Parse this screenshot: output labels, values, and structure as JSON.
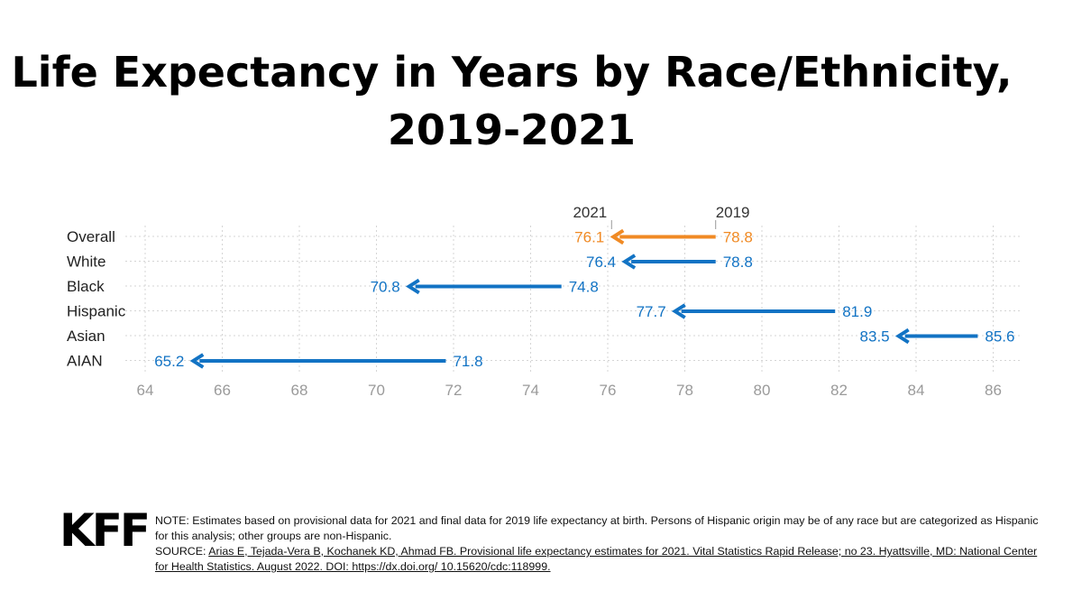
{
  "title_lines": [
    "Life Expectancy in Years by Race/Ethnicity,",
    "2019-2021"
  ],
  "colors": {
    "overall": "#f08a24",
    "group": "#1273c4",
    "grid": "#d5d5d5",
    "tick": "#9a9a9a",
    "label": "#222222"
  },
  "chart_data": {
    "type": "dumbbell-arrow",
    "title": "Life Expectancy in Years by Race/Ethnicity, 2019-2021",
    "start_label": "2019",
    "end_label": "2021",
    "xlim": [
      64,
      86.5
    ],
    "xticks": [
      64,
      66,
      68,
      70,
      72,
      74,
      76,
      78,
      80,
      82,
      84,
      86
    ],
    "categories": [
      "Overall",
      "White",
      "Black",
      "Hispanic",
      "Asian",
      "AIAN"
    ],
    "series": [
      {
        "name": "2019",
        "values": [
          78.8,
          78.8,
          74.8,
          81.9,
          85.6,
          71.8
        ]
      },
      {
        "name": "2021",
        "values": [
          76.1,
          76.4,
          70.8,
          77.7,
          83.5,
          65.2
        ]
      }
    ],
    "highlight": [
      "Overall"
    ]
  },
  "footer": {
    "logo": "KFF",
    "note": "NOTE: Estimates based on provisional data for 2021 and final data for 2019 life expectancy at birth. Persons of Hispanic origin may be of any race but are categorized as Hispanic for this analysis; other groups are non-Hispanic.",
    "source_prefix": "SOURCE: ",
    "source_link": "Arias E, Tejada-Vera B, Kochanek KD, Ahmad FB. Provisional life expectancy estimates for 2021. Vital Statistics Rapid Release; no 23. Hyattsville, MD: National Center for Health Statistics. August 2022. DOI: https://dx.doi.org/ 10.15620/cdc:118999."
  }
}
